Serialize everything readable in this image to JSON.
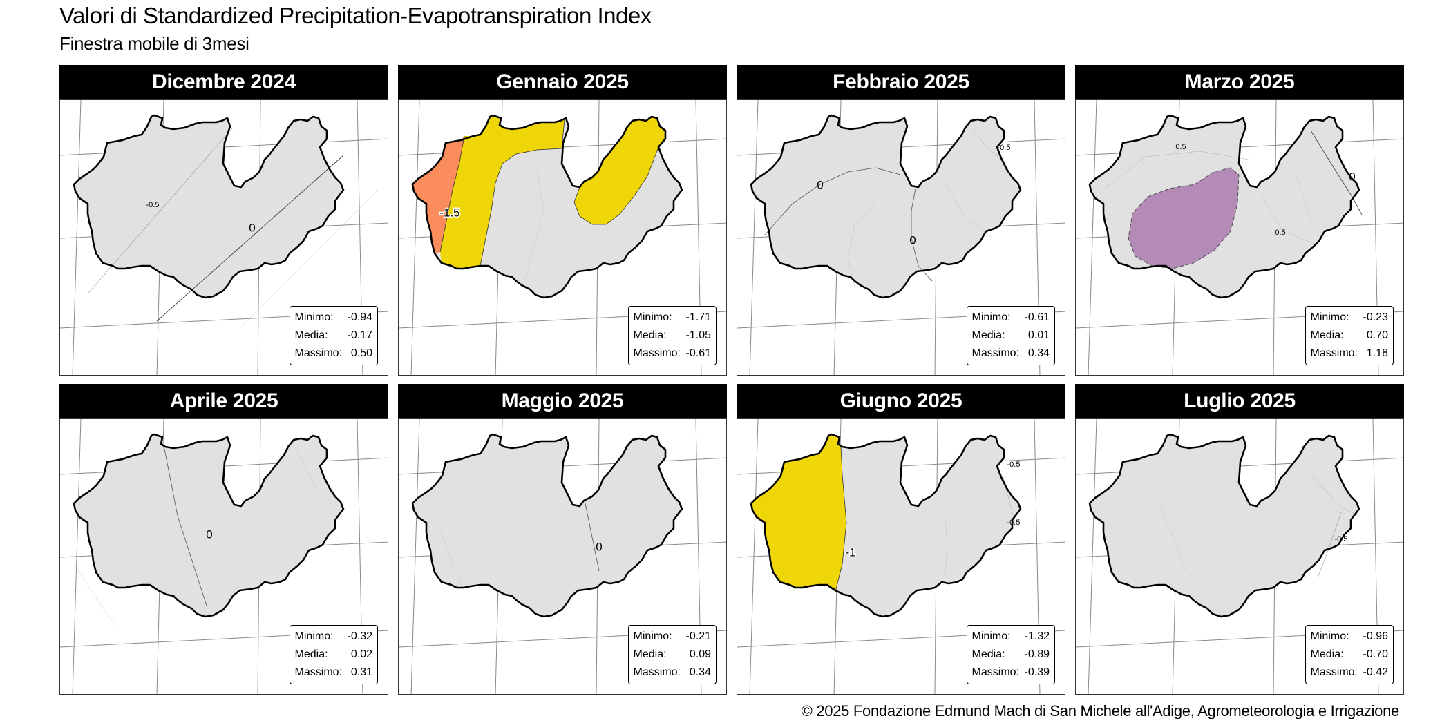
{
  "title": "Valori di Standardized Precipitation-Evapotranspiration Index",
  "subtitle": "Finestra mobile di 3mesi",
  "credit": "© 2025 Fondazione Edmund Mach di San Michele all'Adige, Agrometeorologia e Irrigazione",
  "stat_labels": {
    "min": "Minimo:",
    "mean": "Media:",
    "max": "Massimo:"
  },
  "colors": {
    "neutral": "#e1e1e1",
    "moderately_dry": "#eed608",
    "severely_dry": "#fb8c5c",
    "moderately_wet": "#b38bb6"
  },
  "panels": [
    {
      "month": "Dicembre 2024",
      "stats": {
        "min": "-0.94",
        "mean": "-0.17",
        "max": "0.50"
      },
      "contour_labels": [
        "-0.5",
        "0"
      ]
    },
    {
      "month": "Gennaio 2025",
      "stats": {
        "min": "-1.71",
        "mean": "-1.05",
        "max": "-0.61"
      },
      "contour_labels": [
        "-1.5"
      ]
    },
    {
      "month": "Febbraio 2025",
      "stats": {
        "min": "-0.61",
        "mean": "0.01",
        "max": "0.34"
      },
      "contour_labels": [
        "-0.5",
        "0",
        "0"
      ]
    },
    {
      "month": "Marzo 2025",
      "stats": {
        "min": "-0.23",
        "mean": "0.70",
        "max": "1.18"
      },
      "contour_labels": [
        "0.5",
        "0",
        "0.5"
      ]
    },
    {
      "month": "Aprile 2025",
      "stats": {
        "min": "-0.32",
        "mean": "0.02",
        "max": "0.31"
      },
      "contour_labels": [
        "0"
      ]
    },
    {
      "month": "Maggio 2025",
      "stats": {
        "min": "-0.21",
        "mean": "0.09",
        "max": "0.34"
      },
      "contour_labels": [
        "0"
      ]
    },
    {
      "month": "Giugno 2025",
      "stats": {
        "min": "-1.32",
        "mean": "-0.89",
        "max": "-0.39"
      },
      "contour_labels": [
        "-0.5",
        "-0.5",
        "-1"
      ]
    },
    {
      "month": "Luglio 2025",
      "stats": {
        "min": "-0.96",
        "mean": "-0.70",
        "max": "-0.42"
      },
      "contour_labels": [
        "-0.5"
      ]
    }
  ]
}
